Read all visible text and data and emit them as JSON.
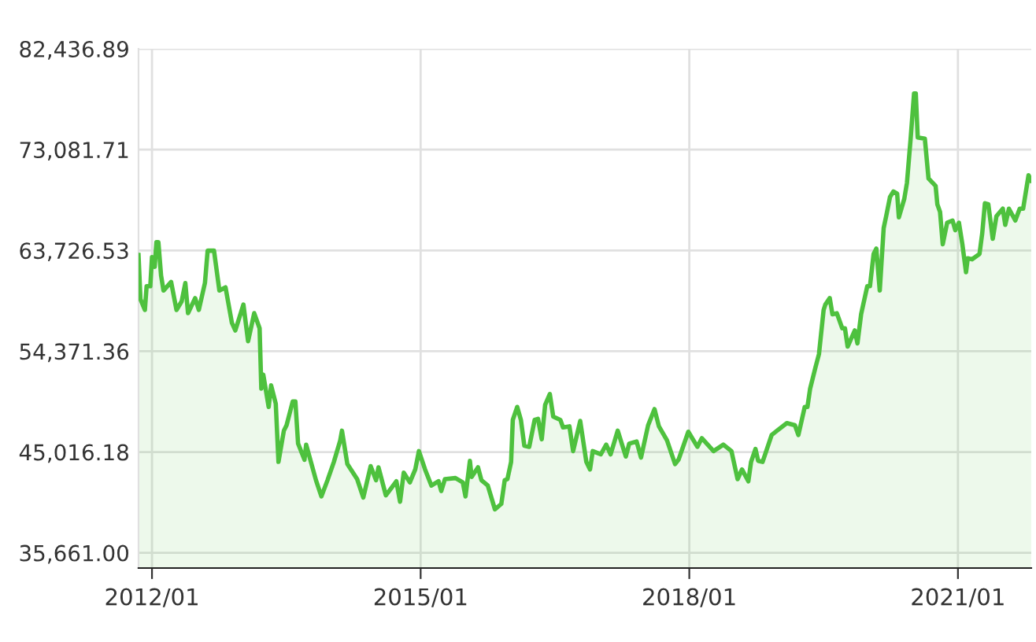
{
  "chart_data": {
    "type": "area",
    "grid": true,
    "xlim": [
      "2011-11-07",
      "2021-10-27"
    ],
    "xticks": [
      {
        "value": "2012-01",
        "label": "2012/01"
      },
      {
        "value": "2015-01",
        "label": "2015/01"
      },
      {
        "value": "2018-01",
        "label": "2018/01"
      },
      {
        "value": "2021-01",
        "label": "2021/01"
      }
    ],
    "ylim": [
      34250,
      82436.89
    ],
    "yticks": [
      {
        "value": 35661.0,
        "label": "35,661.00"
      },
      {
        "value": 45016.18,
        "label": "45,016.18"
      },
      {
        "value": 54371.36,
        "label": "54,371.36"
      },
      {
        "value": 63726.53,
        "label": "63,726.53"
      },
      {
        "value": 73081.71,
        "label": "73,081.71"
      },
      {
        "value": 82436.89,
        "label": "82,436.89"
      }
    ],
    "series": [
      {
        "color": "#4ec13e",
        "x": [
          "2011-11-07",
          "2011-11-15",
          "2011-12-03",
          "2011-12-10",
          "2011-12-25",
          "2012-01-01",
          "2012-01-12",
          "2012-01-19",
          "2012-01-27",
          "2012-02-07",
          "2012-02-17",
          "2012-03-19",
          "2012-04-10",
          "2012-05-01",
          "2012-05-16",
          "2012-05-27",
          "2012-06-25",
          "2012-07-10",
          "2012-08-04",
          "2012-08-15",
          "2012-09-10",
          "2012-10-02",
          "2012-10-27",
          "2012-11-22",
          "2012-12-06",
          "2013-01-08",
          "2013-01-27",
          "2013-02-21",
          "2013-03-15",
          "2013-03-22",
          "2013-03-30",
          "2013-04-21",
          "2013-05-01",
          "2013-05-20",
          "2013-05-31",
          "2013-06-22",
          "2013-07-03",
          "2013-07-28",
          "2013-08-08",
          "2013-08-19",
          "2013-09-14",
          "2013-09-21",
          "2013-10-31",
          "2013-11-22",
          "2013-12-17",
          "2014-01-12",
          "2014-02-07",
          "2014-02-14",
          "2014-03-08",
          "2014-04-17",
          "2014-05-12",
          "2014-06-11",
          "2014-07-03",
          "2014-07-13",
          "2014-08-12",
          "2014-09-24",
          "2014-10-09",
          "2014-10-24",
          "2014-11-18",
          "2014-12-10",
          "2014-12-25",
          "2015-01-19",
          "2015-02-14",
          "2015-03-15",
          "2015-03-26",
          "2015-04-10",
          "2015-05-23",
          "2015-06-22",
          "2015-07-03",
          "2015-07-21",
          "2015-07-28",
          "2015-08-23",
          "2015-09-06",
          "2015-10-02",
          "2015-10-31",
          "2015-11-26",
          "2015-12-10",
          "2015-12-21",
          "2016-01-05",
          "2016-01-12",
          "2016-01-30",
          "2016-02-14",
          "2016-02-28",
          "2016-03-19",
          "2016-04-10",
          "2016-04-24",
          "2016-05-09",
          "2016-05-23",
          "2016-06-11",
          "2016-06-25",
          "2016-07-24",
          "2016-08-04",
          "2016-08-30",
          "2016-09-14",
          "2016-10-13",
          "2016-11-07",
          "2016-11-22",
          "2016-12-03",
          "2017-01-05",
          "2017-01-27",
          "2017-02-14",
          "2017-03-15",
          "2017-04-17",
          "2017-05-01",
          "2017-05-31",
          "2017-06-18",
          "2017-07-17",
          "2017-08-12",
          "2017-08-30",
          "2017-10-02",
          "2017-11-04",
          "2017-11-18",
          "2017-12-28",
          "2018-02-03",
          "2018-02-21",
          "2018-04-10",
          "2018-05-20",
          "2018-06-22",
          "2018-07-17",
          "2018-08-04",
          "2018-08-30",
          "2018-09-10",
          "2018-09-28",
          "2018-10-09",
          "2018-10-27",
          "2018-12-03",
          "2018-12-25",
          "2019-02-03",
          "2019-03-08",
          "2019-03-22",
          "2019-04-17",
          "2019-04-28",
          "2019-05-09",
          "2019-05-31",
          "2019-06-14",
          "2019-07-03",
          "2019-07-10",
          "2019-07-28",
          "2019-08-08",
          "2019-08-26",
          "2019-09-17",
          "2019-09-28",
          "2019-10-09",
          "2019-11-07",
          "2019-11-18",
          "2019-12-03",
          "2019-12-28",
          "2020-01-08",
          "2020-01-23",
          "2020-02-03",
          "2020-02-17",
          "2020-03-04",
          "2020-03-15",
          "2020-03-30",
          "2020-04-13",
          "2020-04-28",
          "2020-05-05",
          "2020-05-27",
          "2020-06-07",
          "2020-06-22",
          "2020-07-06",
          "2020-07-13",
          "2020-07-21",
          "2020-08-19",
          "2020-09-03",
          "2020-10-02",
          "2020-10-09",
          "2020-10-20",
          "2020-10-31",
          "2020-11-18",
          "2020-12-10",
          "2020-12-21",
          "2021-01-05",
          "2021-01-19",
          "2021-02-03",
          "2021-02-10",
          "2021-02-28",
          "2021-03-30",
          "2021-04-10",
          "2021-04-21",
          "2021-05-05",
          "2021-05-23",
          "2021-06-07",
          "2021-07-03",
          "2021-07-13",
          "2021-07-28",
          "2021-08-23",
          "2021-09-10",
          "2021-09-24",
          "2021-10-16",
          "2021-10-27"
        ],
        "values": [
          63300,
          59200,
          58200,
          60400,
          60400,
          63100,
          62200,
          64500,
          64500,
          61400,
          60000,
          60800,
          58200,
          59000,
          60700,
          57900,
          59300,
          58200,
          60700,
          63700,
          63700,
          60000,
          60300,
          57000,
          56300,
          58700,
          55300,
          57900,
          56500,
          50900,
          52200,
          49200,
          51200,
          49500,
          44100,
          47000,
          47500,
          49700,
          49700,
          45800,
          44300,
          45700,
          42400,
          40900,
          42400,
          44100,
          46100,
          47000,
          43900,
          42500,
          40800,
          43700,
          42400,
          43600,
          41000,
          42300,
          40400,
          43100,
          42200,
          43400,
          45100,
          43400,
          41900,
          42300,
          41400,
          42500,
          42600,
          42200,
          40900,
          44200,
          42700,
          43600,
          42400,
          41900,
          39700,
          40200,
          42400,
          42500,
          44100,
          48000,
          49200,
          48000,
          45600,
          45500,
          48000,
          48100,
          46200,
          49400,
          50400,
          48300,
          48000,
          47300,
          47400,
          45100,
          47900,
          44100,
          43400,
          45100,
          44800,
          45700,
          44800,
          47000,
          44600,
          45800,
          46000,
          44500,
          47500,
          49000,
          47400,
          46100,
          43900,
          44300,
          46900,
          45500,
          46300,
          45100,
          45700,
          45100,
          42500,
          43400,
          42300,
          44100,
          45300,
          44200,
          44100,
          46600,
          47000,
          47700,
          47500,
          46600,
          49200,
          49200,
          50900,
          52900,
          54100,
          58200,
          58700,
          59300,
          57800,
          57900,
          56500,
          56500,
          54800,
          56300,
          55100,
          57800,
          60400,
          60400,
          63400,
          63900,
          60000,
          65800,
          67000,
          68700,
          69200,
          69000,
          66800,
          68500,
          70000,
          74100,
          78300,
          78300,
          74200,
          74100,
          70400,
          69700,
          68000,
          67300,
          64300,
          66300,
          66500,
          65600,
          66300,
          64300,
          61700,
          63000,
          62900,
          63400,
          65300,
          68100,
          68000,
          64800,
          66900,
          67600,
          66100,
          67600,
          66500,
          67600,
          67600,
          70700,
          70200
        ]
      }
    ]
  }
}
